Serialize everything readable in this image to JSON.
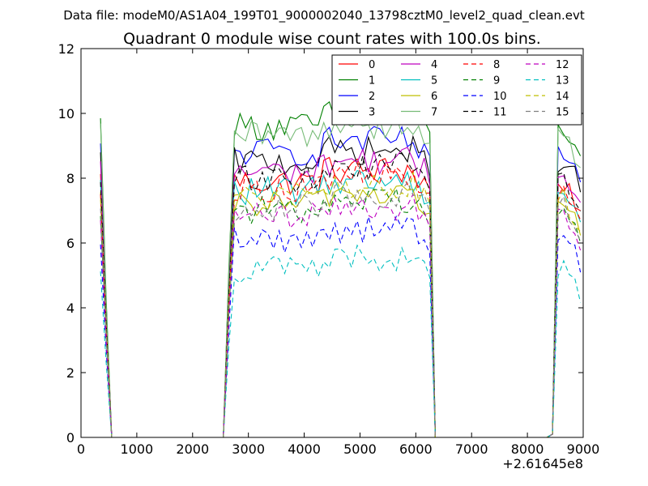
{
  "suptitle": "Data file: modeM0/AS1A04_199T01_9000002040_13798cztM0_level2_quad_clean.evt",
  "chart_data": {
    "type": "line",
    "title": "Quadrant 0 module wise count rates with 100.0s bins.",
    "xlabel": "",
    "ylabel": "",
    "x_offset_label": "+2.61645e8",
    "xlim": [
      0,
      9000
    ],
    "ylim": [
      0,
      12
    ],
    "xticks": [
      0,
      1000,
      2000,
      3000,
      4000,
      5000,
      6000,
      7000,
      8000,
      9000
    ],
    "yticks": [
      0,
      2,
      4,
      6,
      8,
      10,
      12
    ],
    "grid": false,
    "legend_position": "top-right",
    "series": [
      {
        "name": "0",
        "color": "#ff0000",
        "style": "solid",
        "level": 7.9
      },
      {
        "name": "1",
        "color": "#008000",
        "style": "solid",
        "level": 9.6
      },
      {
        "name": "2",
        "color": "#0000ff",
        "style": "solid",
        "level": 8.8
      },
      {
        "name": "3",
        "color": "#000000",
        "style": "solid",
        "level": 8.5
      },
      {
        "name": "4",
        "color": "#bf00bf",
        "style": "solid",
        "level": 8.2
      },
      {
        "name": "5",
        "color": "#00bfbf",
        "style": "solid",
        "level": 7.6
      },
      {
        "name": "6",
        "color": "#bfbf00",
        "style": "solid",
        "level": 7.2
      },
      {
        "name": "7",
        "color": "#77bb77",
        "style": "solid",
        "level": 9.3
      },
      {
        "name": "8",
        "color": "#ff0000",
        "style": "dashed",
        "level": 7.7
      },
      {
        "name": "9",
        "color": "#008000",
        "style": "dashed",
        "level": 7.0
      },
      {
        "name": "10",
        "color": "#0000ff",
        "style": "dashed",
        "level": 6.1
      },
      {
        "name": "11",
        "color": "#000000",
        "style": "dashed",
        "level": 8.0
      },
      {
        "name": "12",
        "color": "#bf00bf",
        "style": "dashed",
        "level": 6.8
      },
      {
        "name": "13",
        "color": "#00bfbf",
        "style": "dashed",
        "level": 5.2
      },
      {
        "name": "14",
        "color": "#bfbf00",
        "style": "dashed",
        "level": 7.4
      },
      {
        "name": "15",
        "color": "#808080",
        "style": "dashed",
        "level": 7.1
      }
    ],
    "segments": [
      {
        "x_start": 350,
        "x_end": 550,
        "step": 100,
        "start_levels_note": "first bin near series level, drops to 0"
      },
      {
        "x_start": 2550,
        "x_end": 6350,
        "step": 100
      },
      {
        "x_start": 8450,
        "x_end": 9000,
        "step": 100
      }
    ]
  }
}
